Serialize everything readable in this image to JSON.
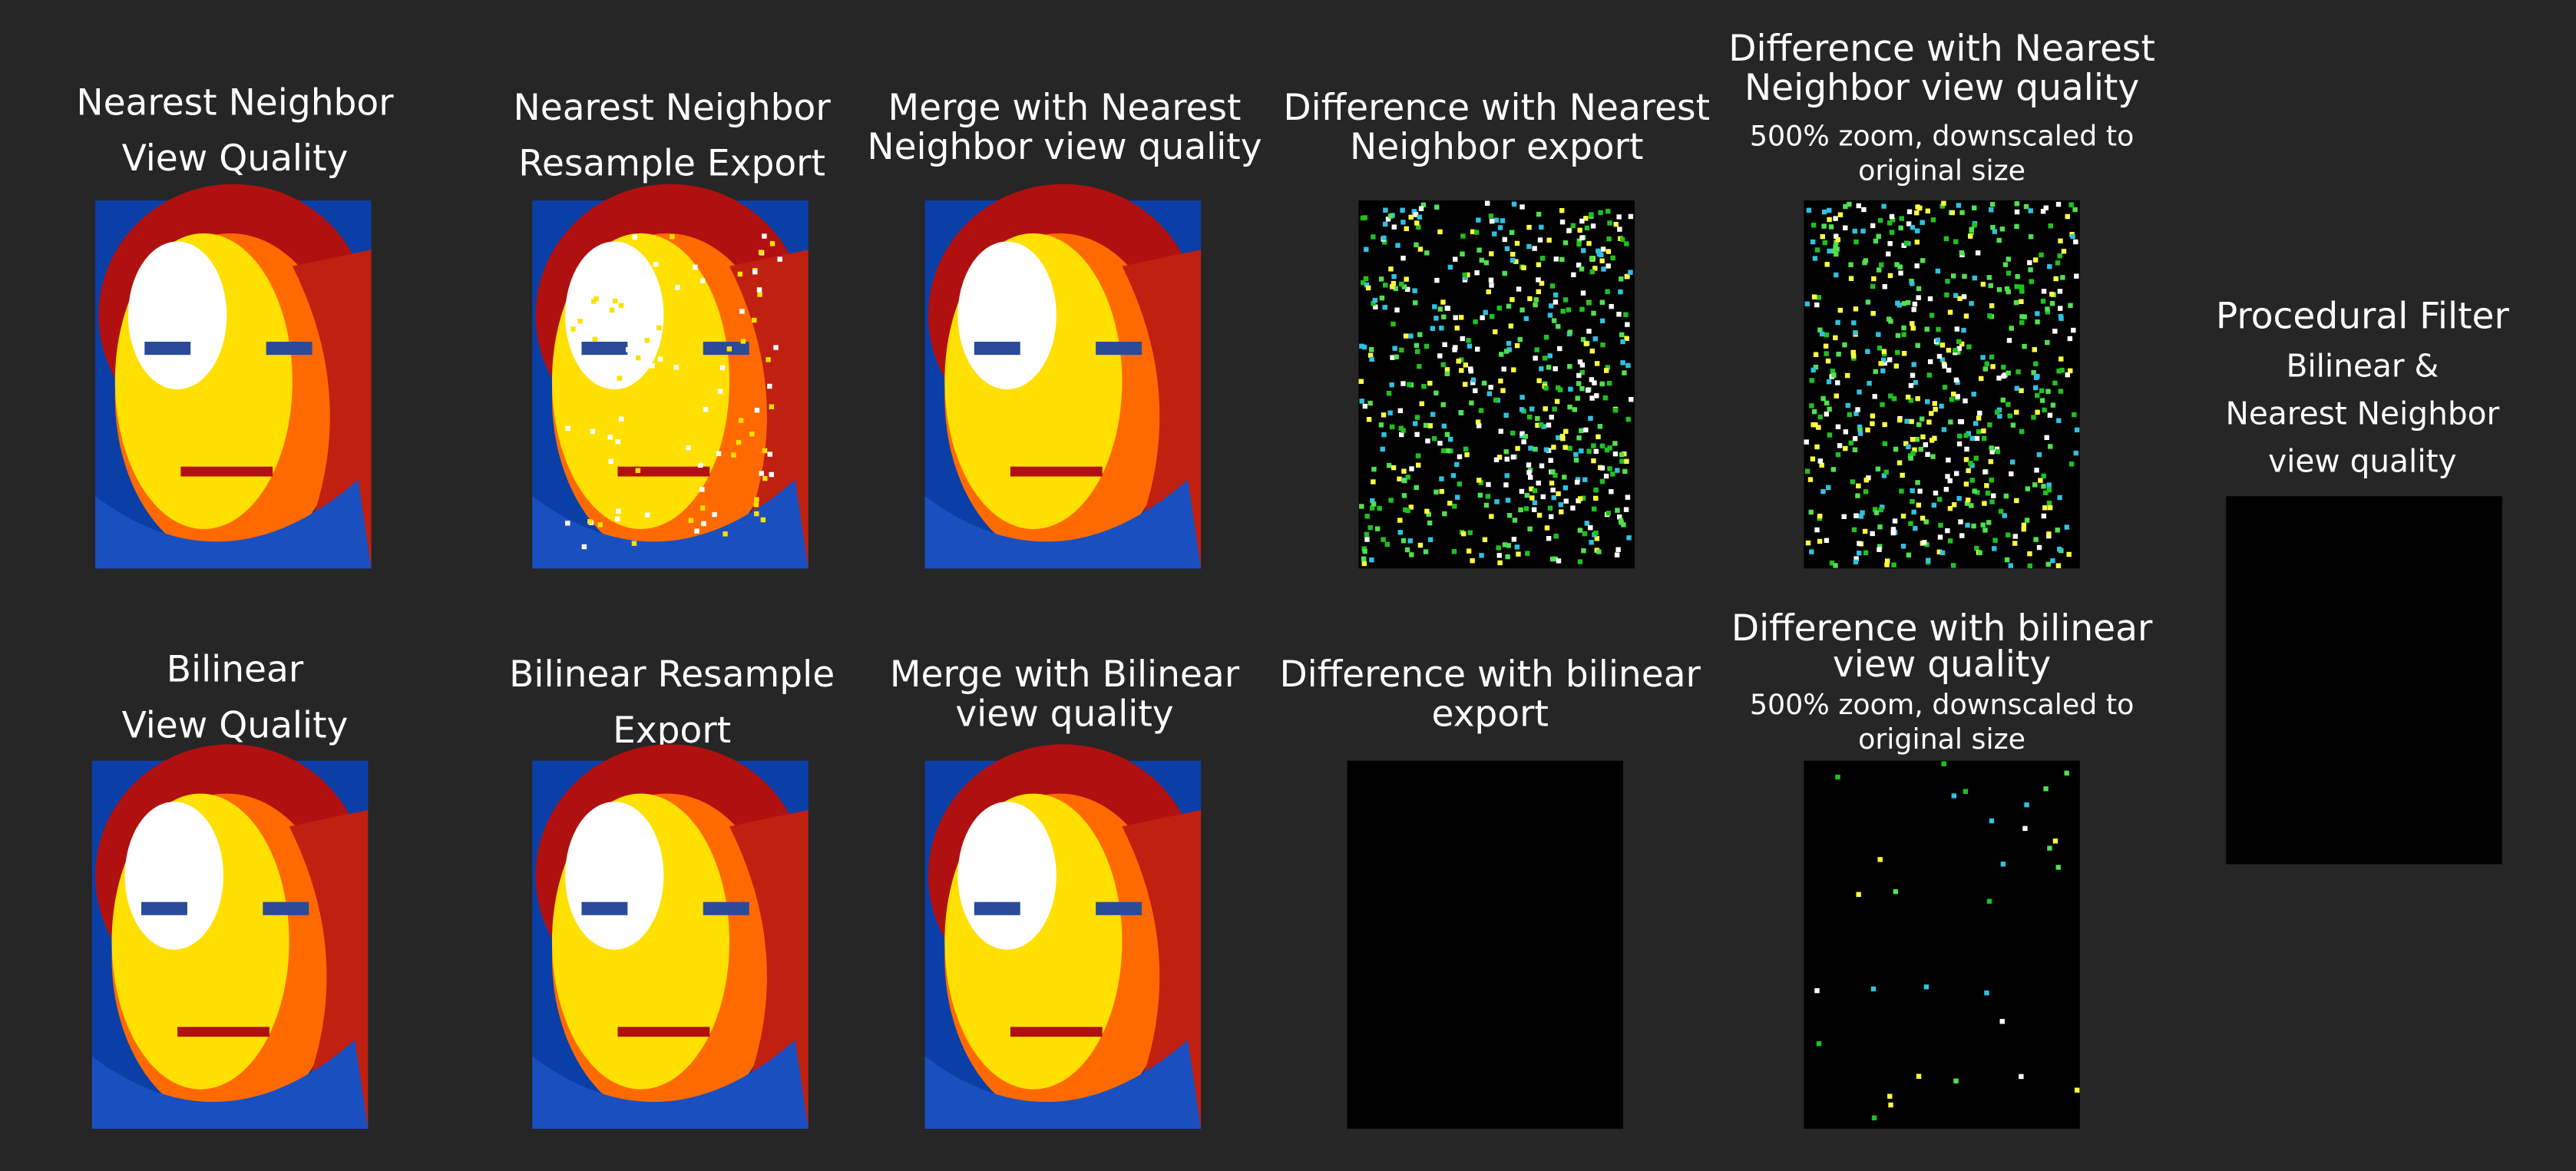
{
  "panels": [
    {
      "lines": [
        "Nearest Neighbor",
        "View Quality"
      ]
    },
    {
      "lines": [
        "Nearest Neighbor",
        "Resample Export"
      ]
    },
    {
      "lines": [
        "Merge with Nearest",
        "Neighbor view quality"
      ]
    },
    {
      "lines": [
        "Difference with Nearest",
        "Neighbor export"
      ]
    },
    {
      "lines": [
        "Difference with Nearest",
        "Neighbor view quality"
      ],
      "note": [
        "500% zoom, downscaled to",
        "original size"
      ]
    },
    {
      "lines": [
        "Procedural Filter"
      ],
      "note": [
        "Bilinear &",
        "Nearest Neighbor",
        "view quality"
      ]
    },
    {
      "lines": [
        "Bilinear",
        "View Quality"
      ]
    },
    {
      "lines": [
        "Bilinear Resample",
        "Export"
      ]
    },
    {
      "lines": [
        "Merge with Bilinear",
        "view quality"
      ]
    },
    {
      "lines": [
        "Difference with bilinear",
        "export"
      ]
    },
    {
      "lines": [
        "Difference with bilinear",
        "view quality"
      ],
      "note": [
        "500% zoom, downscaled to",
        "original size"
      ]
    }
  ]
}
